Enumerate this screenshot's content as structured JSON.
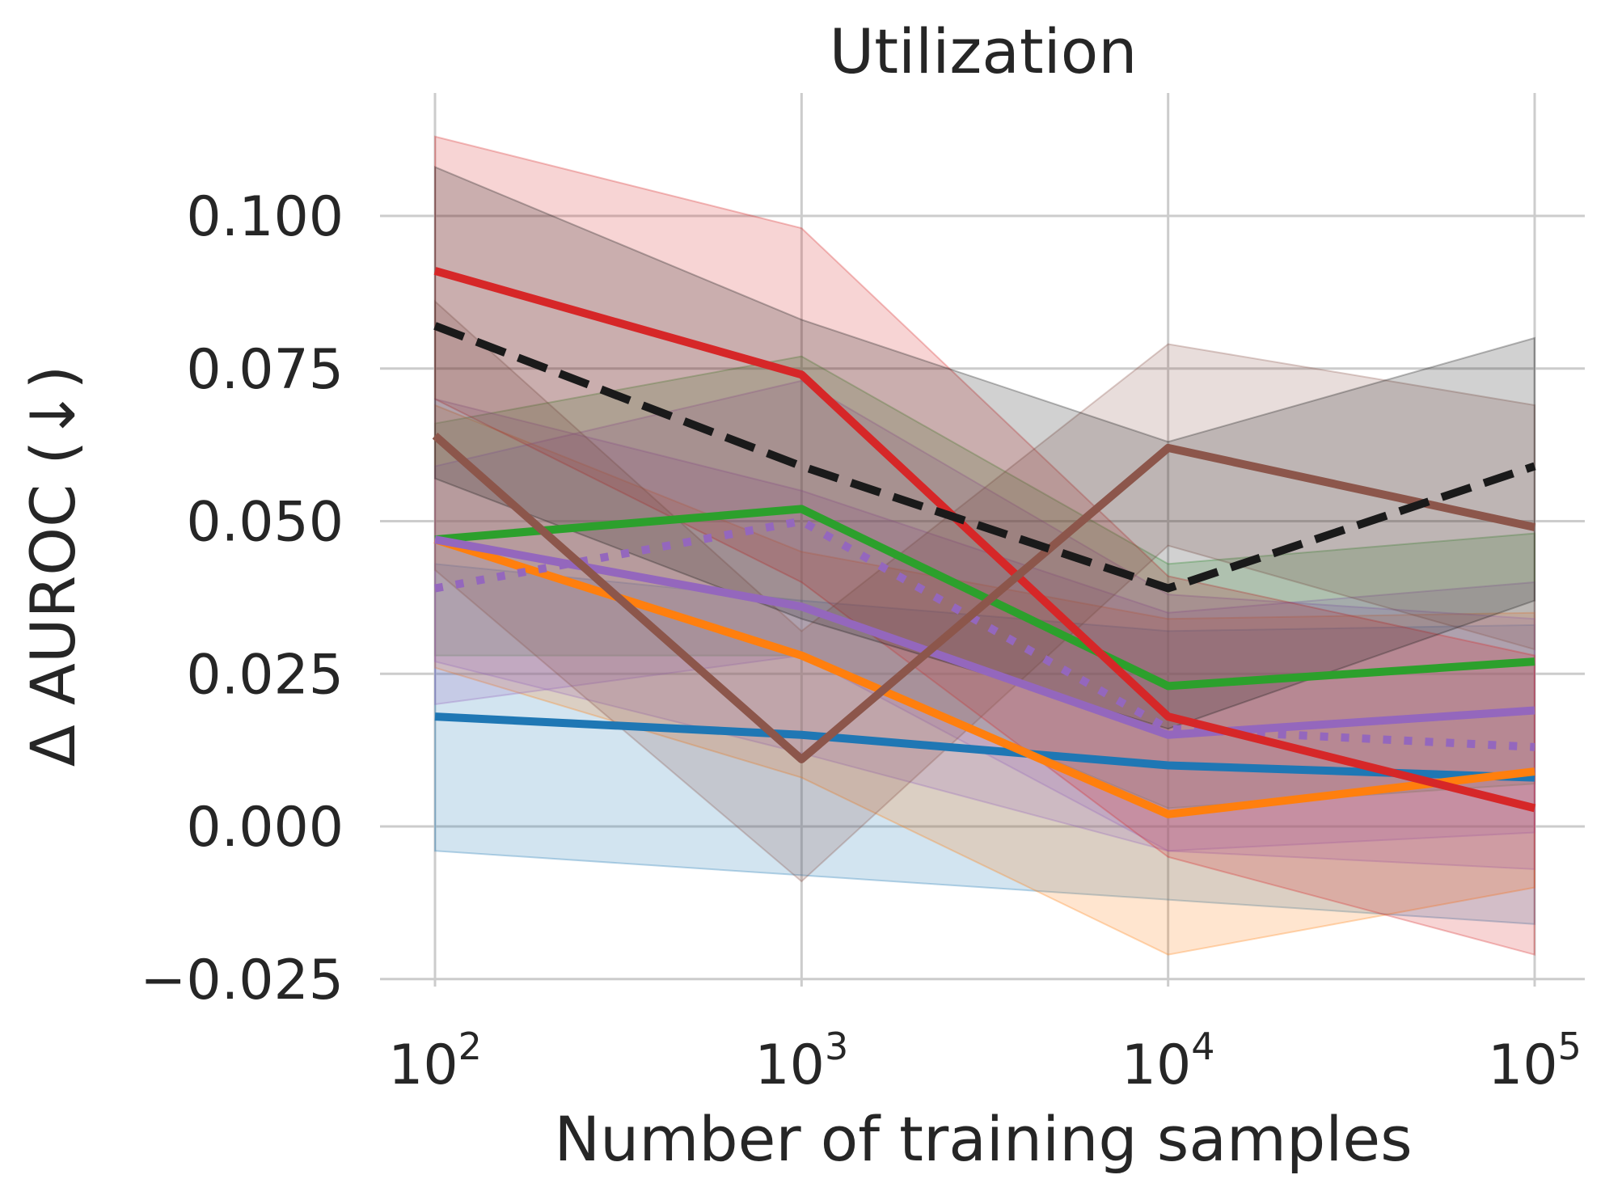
{
  "chart_data": {
    "type": "line",
    "title": "Utilization",
    "xlabel": "Number of training samples",
    "ylabel": "Δ AUROC (↓)",
    "x_scale": "log",
    "x": [
      100,
      1000,
      10000,
      100000
    ],
    "x_tick_labels": [
      {
        "base": "10",
        "exp": "2"
      },
      {
        "base": "10",
        "exp": "3"
      },
      {
        "base": "10",
        "exp": "4"
      },
      {
        "base": "10",
        "exp": "5"
      }
    ],
    "y_ticks": [
      -0.025,
      0.0,
      0.025,
      0.05,
      0.075,
      0.1
    ],
    "y_tick_labels": [
      "−0.025",
      "0.000",
      "0.025",
      "0.050",
      "0.075",
      "0.100"
    ],
    "ylim": [
      -0.0275,
      0.116
    ],
    "grid": true,
    "series": [
      {
        "color": "#2ca02c",
        "style": "solid",
        "values": [
          0.047,
          0.052,
          0.023,
          0.027
        ],
        "lower": [
          0.028,
          0.028,
          0.003,
          0.007
        ],
        "upper": [
          0.066,
          0.077,
          0.043,
          0.048
        ]
      },
      {
        "color": "#1f77b4",
        "style": "solid",
        "values": [
          0.018,
          0.015,
          0.01,
          0.008
        ],
        "lower": [
          -0.004,
          -0.008,
          -0.012,
          -0.016
        ],
        "upper": [
          0.043,
          0.037,
          0.032,
          0.033
        ]
      },
      {
        "color": "#ff7f0e",
        "style": "solid",
        "values": [
          0.047,
          0.028,
          0.002,
          0.009
        ],
        "lower": [
          0.026,
          0.008,
          -0.021,
          -0.01
        ],
        "upper": [
          0.069,
          0.045,
          0.034,
          0.035
        ]
      },
      {
        "color": "#9467bd",
        "style": "solid",
        "values": [
          0.047,
          0.036,
          0.015,
          0.019
        ],
        "lower": [
          0.027,
          0.012,
          -0.004,
          -0.001
        ],
        "upper": [
          0.07,
          0.055,
          0.035,
          0.04
        ]
      },
      {
        "color": "#9467bd",
        "style": "dotted",
        "values": [
          0.039,
          0.05,
          0.016,
          0.013
        ],
        "lower": [
          0.02,
          0.028,
          -0.004,
          -0.007
        ],
        "upper": [
          0.059,
          0.073,
          0.038,
          0.034
        ]
      },
      {
        "color": "#d62728",
        "style": "solid",
        "values": [
          0.091,
          0.074,
          0.018,
          0.003
        ],
        "lower": [
          0.07,
          0.04,
          -0.005,
          -0.021
        ],
        "upper": [
          0.113,
          0.098,
          0.041,
          0.028
        ]
      },
      {
        "color": "#8c564b",
        "style": "solid",
        "values": [
          0.064,
          0.011,
          0.062,
          0.049
        ],
        "lower": [
          0.042,
          -0.009,
          0.046,
          0.029
        ],
        "upper": [
          0.086,
          0.032,
          0.079,
          0.069
        ]
      },
      {
        "color": "#1a1a1a",
        "style": "dashed",
        "values": [
          0.082,
          0.059,
          0.039,
          0.059
        ],
        "lower": [
          0.057,
          0.034,
          0.016,
          0.037
        ],
        "upper": [
          0.108,
          0.083,
          0.063,
          0.08
        ]
      }
    ]
  }
}
